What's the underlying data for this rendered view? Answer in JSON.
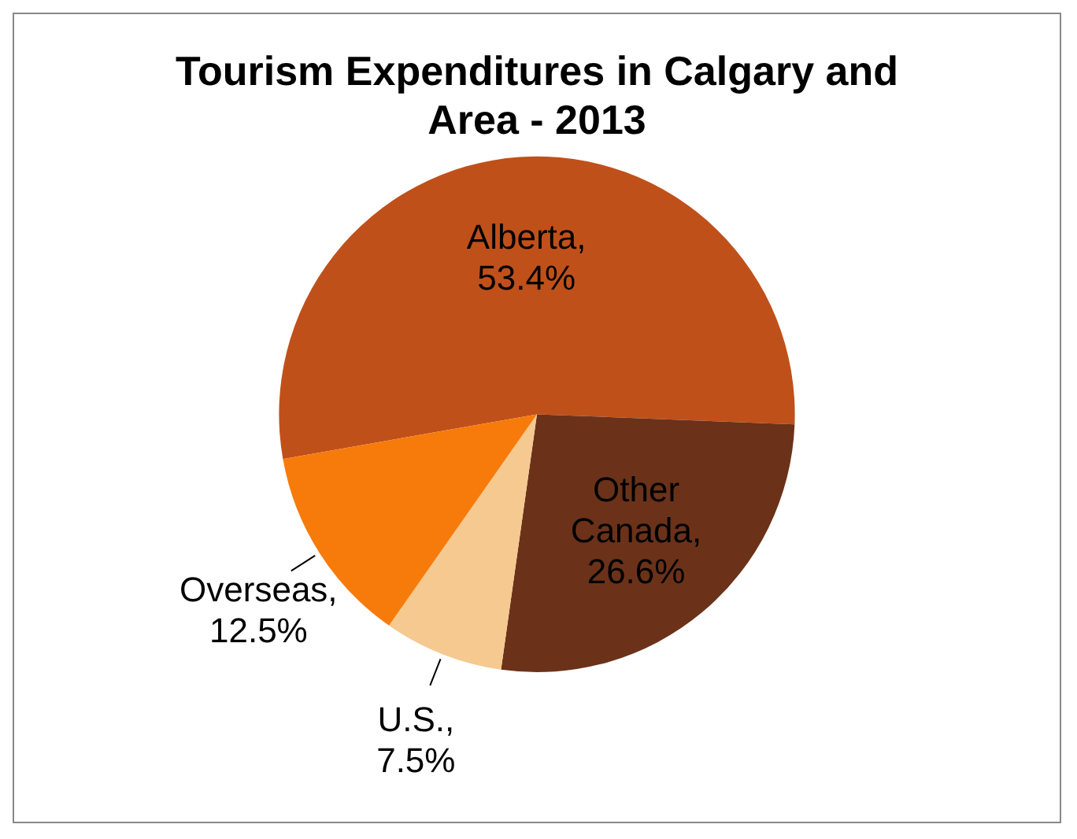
{
  "chart_data": {
    "type": "pie",
    "title": "Tourism Expenditures in Calgary and Area - 2013",
    "categories": [
      "Alberta",
      "Other Canada",
      "U.S.",
      "Overseas"
    ],
    "values": [
      53.4,
      26.6,
      7.5,
      12.5
    ],
    "colors": [
      "#c0501a",
      "#6b3219",
      "#f5c98f",
      "#f77b0a"
    ],
    "value_labels": [
      ", 53.4%",
      ", 26.6%",
      ", 7.5%",
      ", 12.5%"
    ],
    "legend": false
  }
}
